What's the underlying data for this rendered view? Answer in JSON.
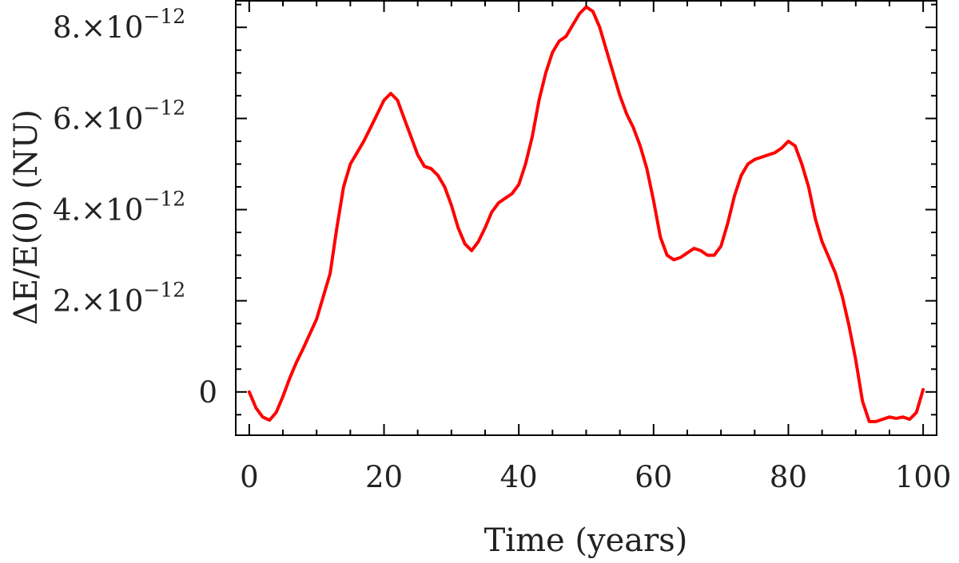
{
  "chart_data": {
    "type": "line",
    "title": "",
    "xlabel": "Time (years)",
    "ylabel": "ΔE/E(0) (NU)",
    "xlim": [
      -2,
      102
    ],
    "ylim": [
      -9.5e-13,
      8.6e-12
    ],
    "x_ticks": [
      {
        "value": 0,
        "label": "0"
      },
      {
        "value": 20,
        "label": "20"
      },
      {
        "value": 40,
        "label": "40"
      },
      {
        "value": 60,
        "label": "60"
      },
      {
        "value": 80,
        "label": "80"
      },
      {
        "value": 100,
        "label": "100"
      }
    ],
    "y_ticks": [
      {
        "value": 0,
        "mantissa": "0",
        "exponent": ""
      },
      {
        "value": 2e-12,
        "mantissa": "2.×10",
        "exponent": "−12"
      },
      {
        "value": 4e-12,
        "mantissa": "4.×10",
        "exponent": "−12"
      },
      {
        "value": 6e-12,
        "mantissa": "6.×10",
        "exponent": "−12"
      },
      {
        "value": 8e-12,
        "mantissa": "8.×10",
        "exponent": "−12"
      }
    ],
    "series": [
      {
        "color": "#ff0000",
        "x": [
          0,
          1,
          2,
          3,
          4,
          5,
          6,
          7,
          8,
          10,
          12,
          13,
          14,
          15,
          16,
          17,
          18,
          19,
          20,
          21,
          22,
          23,
          24,
          25,
          26,
          27,
          28,
          29,
          30,
          31,
          32,
          33,
          34,
          35,
          36,
          37,
          38,
          39,
          40,
          41,
          42,
          43,
          44,
          45,
          46,
          47,
          48,
          49,
          50,
          51,
          52,
          53,
          54,
          55,
          56,
          57,
          58,
          59,
          60,
          61,
          62,
          63,
          64,
          65,
          66,
          67,
          68,
          69,
          70,
          71,
          72,
          73,
          74,
          75,
          76,
          77,
          78,
          79,
          80,
          81,
          82,
          83,
          84,
          85,
          86,
          87,
          88,
          89,
          90,
          91,
          92,
          93,
          94,
          95,
          96,
          97,
          98,
          99,
          100
        ],
        "y": [
          0,
          -3.5e-13,
          -5.5e-13,
          -6.2e-13,
          -4.5e-13,
          -1e-13,
          3e-13,
          6.5e-13,
          9.5e-13,
          1.6e-12,
          2.6e-12,
          3.6e-12,
          4.5e-12,
          5e-12,
          5.25e-12,
          5.5e-12,
          5.8e-12,
          6.1e-12,
          6.4e-12,
          6.55e-12,
          6.4e-12,
          6e-12,
          5.6e-12,
          5.2e-12,
          4.95e-12,
          4.9e-12,
          4.75e-12,
          4.5e-12,
          4.1e-12,
          3.6e-12,
          3.25e-12,
          3.1e-12,
          3.3e-12,
          3.6e-12,
          3.95e-12,
          4.15e-12,
          4.25e-12,
          4.35e-12,
          4.55e-12,
          5e-12,
          5.6e-12,
          6.4e-12,
          7e-12,
          7.45e-12,
          7.7e-12,
          7.8e-12,
          8.05e-12,
          8.3e-12,
          8.45e-12,
          8.35e-12,
          8e-12,
          7.5e-12,
          7e-12,
          6.5e-12,
          6.1e-12,
          5.8e-12,
          5.4e-12,
          4.9e-12,
          4.2e-12,
          3.4e-12,
          3e-12,
          2.9e-12,
          2.95e-12,
          3.05e-12,
          3.15e-12,
          3.1e-12,
          3e-12,
          3e-12,
          3.2e-12,
          3.7e-12,
          4.3e-12,
          4.75e-12,
          5e-12,
          5.1e-12,
          5.15e-12,
          5.2e-12,
          5.25e-12,
          5.35e-12,
          5.5e-12,
          5.4e-12,
          5e-12,
          4.5e-12,
          3.8e-12,
          3.3e-12,
          2.95e-12,
          2.6e-12,
          2.1e-12,
          1.45e-12,
          7e-13,
          -2e-13,
          -6.5e-13,
          -6.5e-13,
          -6e-13,
          -5.5e-13,
          -5.8e-13,
          -5.5e-13,
          -6e-13,
          -4.5e-13,
          5e-14
        ]
      }
    ]
  }
}
